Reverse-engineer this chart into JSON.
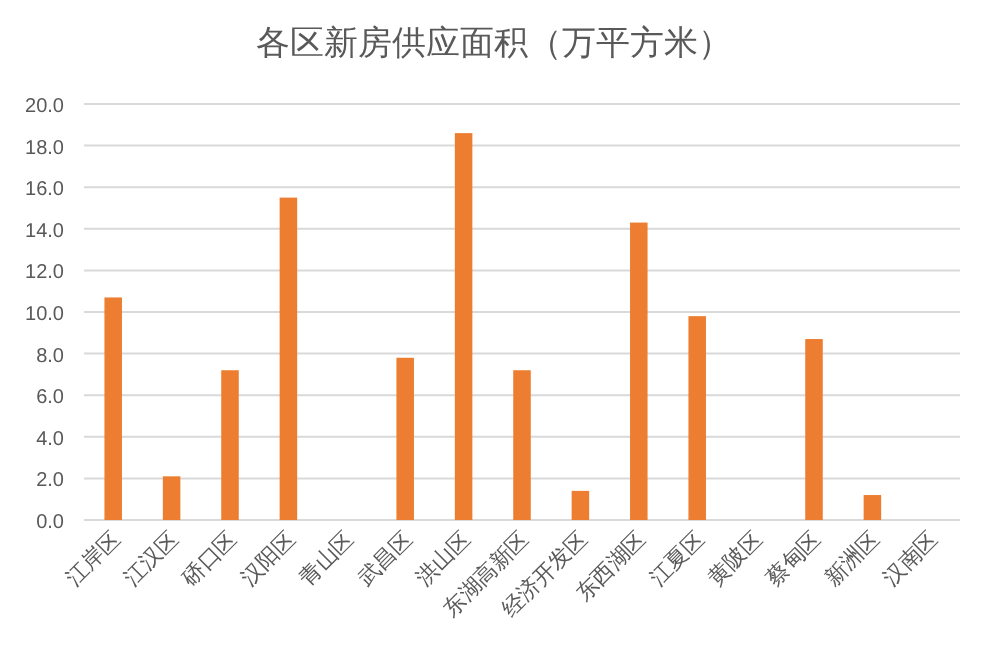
{
  "chart_data": {
    "type": "bar",
    "title": "各区新房供应面积（万平方米）",
    "categories": [
      "江岸区",
      "江汉区",
      "硚口区",
      "汉阳区",
      "青山区",
      "武昌区",
      "洪山区",
      "东湖高新区",
      "经济开发区",
      "东西湖区",
      "江夏区",
      "黄陂区",
      "蔡甸区",
      "新洲区",
      "汉南区"
    ],
    "values": [
      10.7,
      2.1,
      7.2,
      15.5,
      null,
      7.8,
      18.6,
      7.2,
      1.4,
      14.3,
      9.8,
      null,
      8.7,
      1.2,
      null
    ],
    "color": "#ed7d31",
    "ylim": [
      0,
      20
    ],
    "yticks": [
      {
        "value": 0,
        "label": "0.0"
      },
      {
        "value": 2,
        "label": "2.0"
      },
      {
        "value": 4,
        "label": "4.0"
      },
      {
        "value": 6,
        "label": "6.0"
      },
      {
        "value": 8,
        "label": "8.0"
      },
      {
        "value": 10,
        "label": "10.0"
      },
      {
        "value": 12,
        "label": "12.0"
      },
      {
        "value": 14,
        "label": "14.0"
      },
      {
        "value": 16,
        "label": "16.0"
      },
      {
        "value": 18,
        "label": "18.0"
      },
      {
        "value": 20,
        "label": "20.0"
      }
    ],
    "grid": "y"
  }
}
